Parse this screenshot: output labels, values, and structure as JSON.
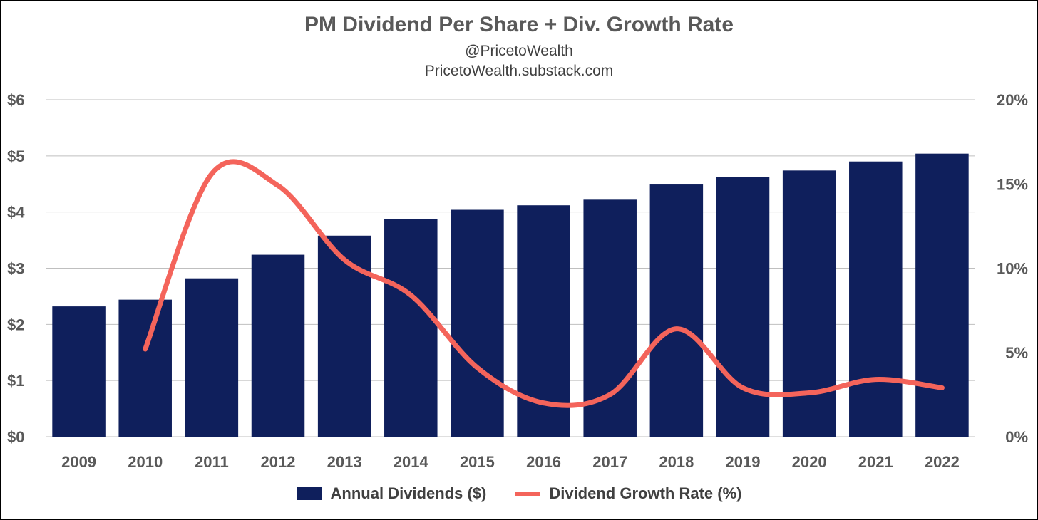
{
  "chart_data": {
    "type": "bar",
    "title": "PM Dividend Per Share + Div. Growth Rate",
    "subtitle_lines": [
      "@PricetoWealth",
      "PricetoWealth.substack.com"
    ],
    "categories": [
      "2009",
      "2010",
      "2011",
      "2012",
      "2013",
      "2014",
      "2015",
      "2016",
      "2017",
      "2018",
      "2019",
      "2020",
      "2021",
      "2022"
    ],
    "series": [
      {
        "name": "Annual Dividends ($)",
        "type": "bar",
        "axis": "left",
        "color": "#0f1f5c",
        "values": [
          2.32,
          2.44,
          2.82,
          3.24,
          3.58,
          3.88,
          4.04,
          4.12,
          4.22,
          4.49,
          4.62,
          4.74,
          4.9,
          5.04
        ]
      },
      {
        "name": "Dividend Growth Rate (%)",
        "type": "line",
        "axis": "right",
        "color": "#f4645b",
        "values": [
          null,
          5.2,
          15.6,
          14.9,
          10.5,
          8.4,
          4.1,
          2.0,
          2.5,
          6.4,
          2.9,
          2.6,
          3.4,
          2.9
        ]
      }
    ],
    "y_left": {
      "ylim": [
        0,
        6
      ],
      "ticks": [
        0,
        1,
        2,
        3,
        4,
        5,
        6
      ],
      "tick_labels": [
        "$0",
        "$1",
        "$2",
        "$3",
        "$4",
        "$5",
        "$6"
      ]
    },
    "y_right": {
      "ylim": [
        0,
        20
      ],
      "ticks": [
        0,
        5,
        10,
        15,
        20
      ],
      "tick_labels": [
        "0%",
        "5%",
        "10%",
        "15%",
        "20%"
      ]
    },
    "grid": true,
    "legend_position": "bottom"
  }
}
